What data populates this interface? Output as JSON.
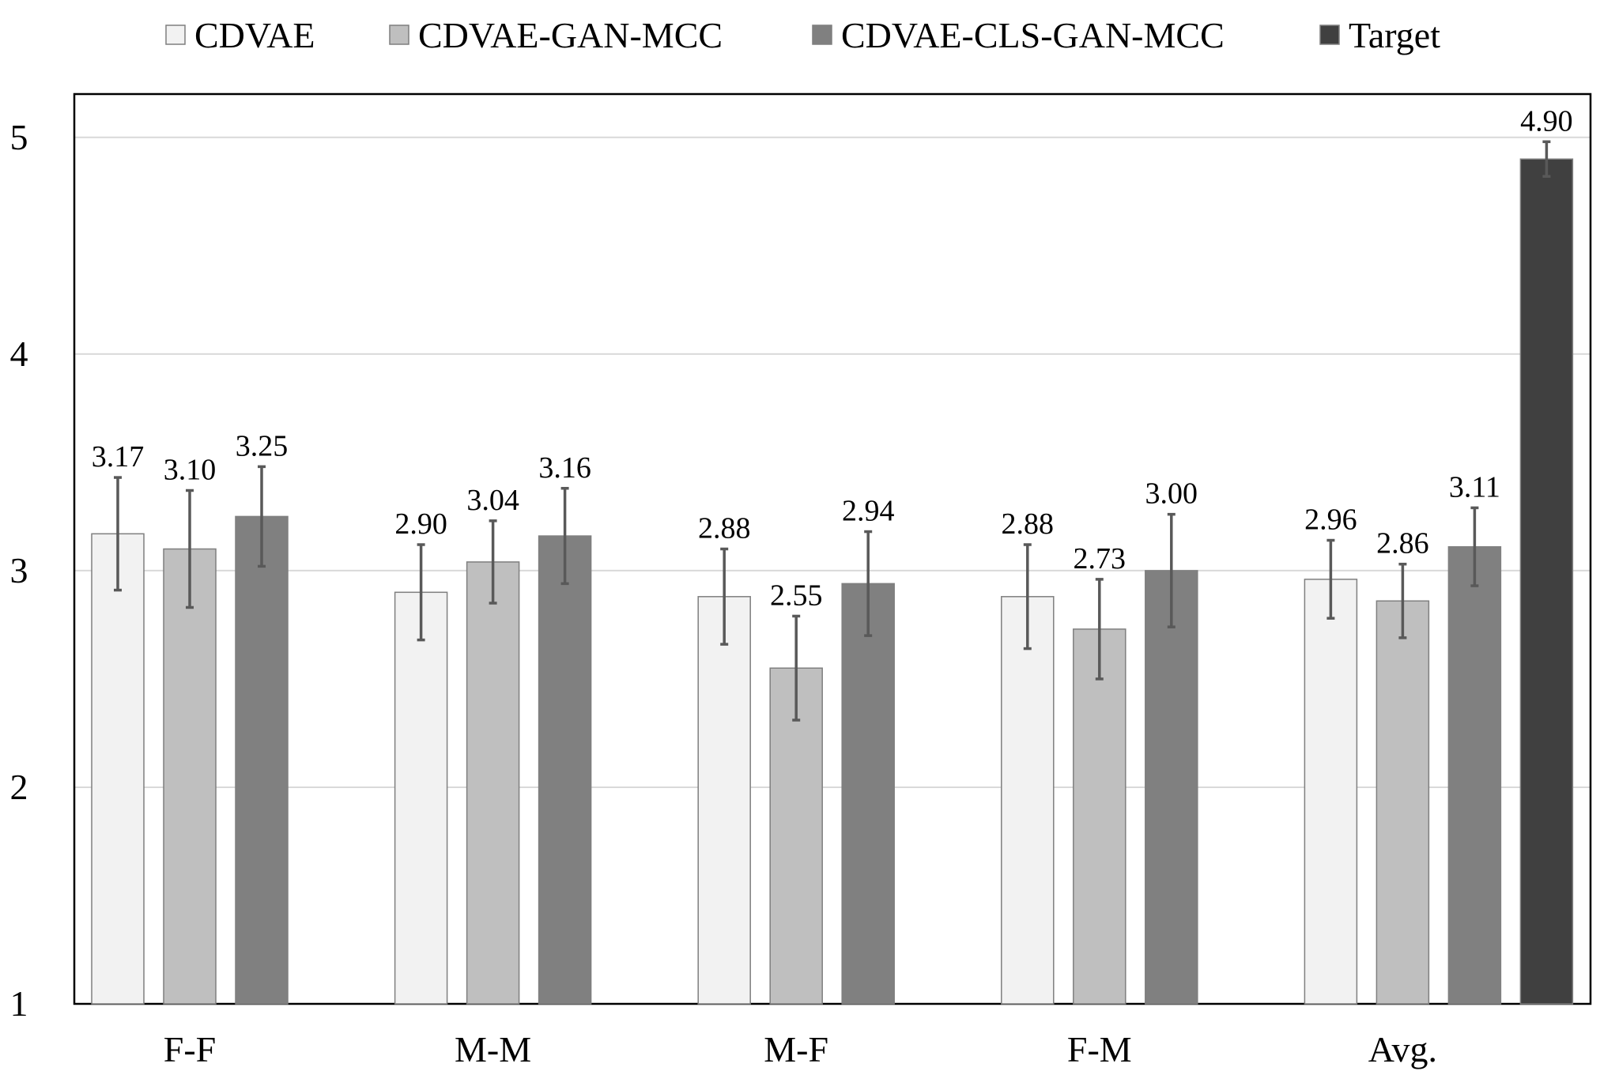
{
  "chart_data": {
    "type": "bar",
    "categories": [
      "F-F",
      "M-M",
      "M-F",
      "F-M",
      "Avg."
    ],
    "series": [
      {
        "name": "CDVAE",
        "color": "#f2f2f2",
        "values": [
          3.17,
          2.9,
          2.88,
          2.88,
          2.96
        ],
        "labels": [
          "3.17",
          "2.90",
          "2.88",
          "2.88",
          "2.96"
        ],
        "error": [
          0.26,
          0.22,
          0.22,
          0.24,
          0.18
        ]
      },
      {
        "name": "CDVAE-GAN-MCC",
        "color": "#bfbfbf",
        "values": [
          3.1,
          3.04,
          2.55,
          2.73,
          2.86
        ],
        "labels": [
          "3.10",
          "3.04",
          "2.55",
          "2.73",
          "2.86"
        ],
        "error": [
          0.27,
          0.19,
          0.24,
          0.23,
          0.17
        ]
      },
      {
        "name": "CDVAE-CLS-GAN-MCC",
        "color": "#808080",
        "values": [
          3.25,
          3.16,
          2.94,
          3.0,
          3.11
        ],
        "labels": [
          "3.25",
          "3.16",
          "2.94",
          "3.00",
          "3.11"
        ],
        "error": [
          0.23,
          0.22,
          0.24,
          0.26,
          0.18
        ]
      },
      {
        "name": "Target",
        "color": "#404040",
        "values": [
          null,
          null,
          null,
          null,
          4.9
        ],
        "labels": [
          null,
          null,
          null,
          null,
          "4.90"
        ],
        "error": [
          null,
          null,
          null,
          null,
          0.08
        ]
      }
    ],
    "ylim": [
      1,
      5.2
    ],
    "yticks": [
      1,
      2,
      3,
      4,
      5
    ],
    "ytick_labels": [
      "1",
      "2",
      "3",
      "4",
      "5"
    ],
    "grid": "horizontal",
    "legend_position": "top"
  }
}
